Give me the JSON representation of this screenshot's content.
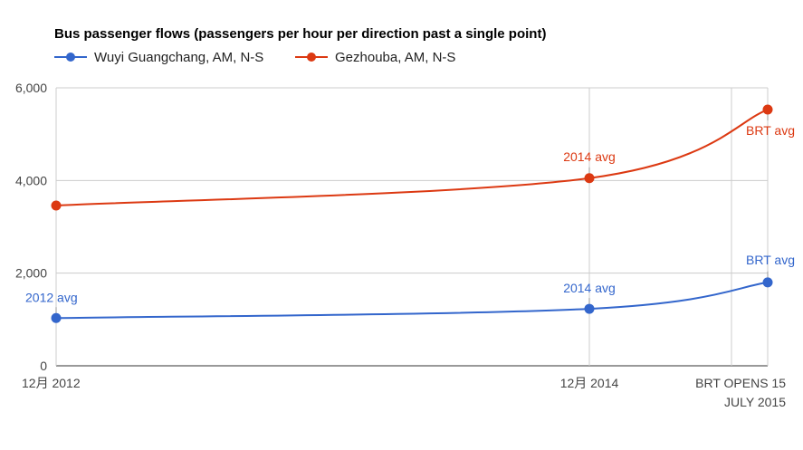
{
  "chart_data": {
    "type": "line",
    "title": "Bus passenger flows (passengers per hour per direction past a single point)",
    "xlabel": "",
    "ylabel": "",
    "ylim": [
      0,
      6000
    ],
    "yticks": [
      0,
      2000,
      4000,
      6000
    ],
    "ytick_labels": [
      "0",
      "2,000",
      "4,000",
      "6,000"
    ],
    "grid": true,
    "legend": "top-left",
    "x": [
      "12月 2012",
      "12月 2014",
      "2015-06-01",
      "BRT OPENS 15 JULY 2015"
    ],
    "xtick_labels": [
      {
        "x": "12月 2012",
        "lines": [
          "12月 2012"
        ]
      },
      {
        "x": "12月 2014",
        "lines": [
          "12月 2014"
        ]
      },
      {
        "x": "BRT OPENS 15 JULY 2015",
        "lines": [
          "BRT OPENS 15",
          "JULY 2015"
        ]
      }
    ],
    "series": [
      {
        "name": "Wuyi Guangchang, AM, N-S",
        "color": "#3366cc",
        "x": [
          "12月 2012",
          "12月 2014",
          "BRT OPENS 15 JULY 2015"
        ],
        "values": [
          1030,
          1230,
          1800
        ],
        "annotations": [
          "2012 avg",
          "2014 avg",
          "BRT avg"
        ]
      },
      {
        "name": "Gezhouba, AM, N-S",
        "color": "#dc3912",
        "x": [
          "12月 2012",
          "12月 2014",
          "BRT OPENS 15 JULY 2015"
        ],
        "values": [
          3460,
          4050,
          5530
        ],
        "annotations": [
          "",
          "2014 avg",
          "BRT avg"
        ]
      }
    ]
  }
}
